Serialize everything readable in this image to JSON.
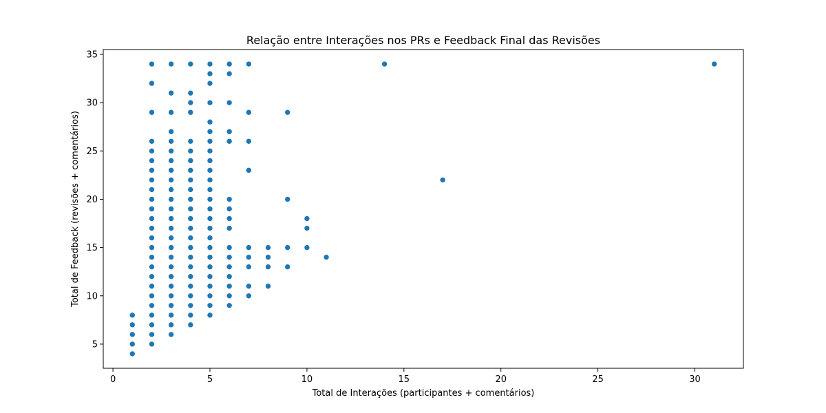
{
  "chart_data": {
    "type": "scatter",
    "title": "Relação entre Interações nos PRs e Feedback Final das Revisões",
    "xlabel": "Total de Interações (participantes + comentários)",
    "ylabel": "Total de Feedback (revisões + comentários)",
    "xlim": [
      -0.5,
      32.5
    ],
    "ylim": [
      2.5,
      35.5
    ],
    "xticks": [
      0,
      5,
      10,
      15,
      20,
      25,
      30
    ],
    "yticks": [
      5,
      10,
      15,
      20,
      25,
      30,
      35
    ],
    "grid": false,
    "color": "#1f77b4",
    "points": [
      [
        1,
        4
      ],
      [
        1,
        5
      ],
      [
        1,
        6
      ],
      [
        1,
        7
      ],
      [
        1,
        8
      ],
      [
        2,
        5
      ],
      [
        2,
        6
      ],
      [
        2,
        7
      ],
      [
        2,
        8
      ],
      [
        2,
        9
      ],
      [
        2,
        10
      ],
      [
        2,
        11
      ],
      [
        2,
        12
      ],
      [
        2,
        13
      ],
      [
        2,
        14
      ],
      [
        2,
        15
      ],
      [
        2,
        16
      ],
      [
        2,
        17
      ],
      [
        2,
        18
      ],
      [
        2,
        19
      ],
      [
        2,
        20
      ],
      [
        2,
        21
      ],
      [
        2,
        22
      ],
      [
        2,
        23
      ],
      [
        2,
        24
      ],
      [
        2,
        25
      ],
      [
        2,
        26
      ],
      [
        2,
        29
      ],
      [
        2,
        32
      ],
      [
        2,
        34
      ],
      [
        3,
        6
      ],
      [
        3,
        7
      ],
      [
        3,
        8
      ],
      [
        3,
        9
      ],
      [
        3,
        10
      ],
      [
        3,
        11
      ],
      [
        3,
        12
      ],
      [
        3,
        13
      ],
      [
        3,
        14
      ],
      [
        3,
        15
      ],
      [
        3,
        16
      ],
      [
        3,
        17
      ],
      [
        3,
        18
      ],
      [
        3,
        19
      ],
      [
        3,
        20
      ],
      [
        3,
        21
      ],
      [
        3,
        22
      ],
      [
        3,
        23
      ],
      [
        3,
        24
      ],
      [
        3,
        25
      ],
      [
        3,
        26
      ],
      [
        3,
        27
      ],
      [
        3,
        29
      ],
      [
        3,
        31
      ],
      [
        3,
        34
      ],
      [
        4,
        7
      ],
      [
        4,
        8
      ],
      [
        4,
        9
      ],
      [
        4,
        10
      ],
      [
        4,
        11
      ],
      [
        4,
        12
      ],
      [
        4,
        13
      ],
      [
        4,
        14
      ],
      [
        4,
        15
      ],
      [
        4,
        16
      ],
      [
        4,
        17
      ],
      [
        4,
        18
      ],
      [
        4,
        19
      ],
      [
        4,
        20
      ],
      [
        4,
        21
      ],
      [
        4,
        22
      ],
      [
        4,
        23
      ],
      [
        4,
        24
      ],
      [
        4,
        25
      ],
      [
        4,
        26
      ],
      [
        4,
        29
      ],
      [
        4,
        30
      ],
      [
        4,
        31
      ],
      [
        4,
        34
      ],
      [
        5,
        8
      ],
      [
        5,
        9
      ],
      [
        5,
        10
      ],
      [
        5,
        11
      ],
      [
        5,
        12
      ],
      [
        5,
        13
      ],
      [
        5,
        14
      ],
      [
        5,
        15
      ],
      [
        5,
        16
      ],
      [
        5,
        17
      ],
      [
        5,
        18
      ],
      [
        5,
        19
      ],
      [
        5,
        20
      ],
      [
        5,
        21
      ],
      [
        5,
        22
      ],
      [
        5,
        23
      ],
      [
        5,
        24
      ],
      [
        5,
        25
      ],
      [
        5,
        26
      ],
      [
        5,
        27
      ],
      [
        5,
        28
      ],
      [
        5,
        30
      ],
      [
        5,
        32
      ],
      [
        5,
        33
      ],
      [
        5,
        34
      ],
      [
        6,
        9
      ],
      [
        6,
        10
      ],
      [
        6,
        11
      ],
      [
        6,
        12
      ],
      [
        6,
        13
      ],
      [
        6,
        14
      ],
      [
        6,
        15
      ],
      [
        6,
        17
      ],
      [
        6,
        18
      ],
      [
        6,
        19
      ],
      [
        6,
        20
      ],
      [
        6,
        26
      ],
      [
        6,
        27
      ],
      [
        6,
        30
      ],
      [
        6,
        33
      ],
      [
        6,
        34
      ],
      [
        7,
        10
      ],
      [
        7,
        11
      ],
      [
        7,
        13
      ],
      [
        7,
        14
      ],
      [
        7,
        15
      ],
      [
        7,
        23
      ],
      [
        7,
        26
      ],
      [
        7,
        29
      ],
      [
        7,
        34
      ],
      [
        8,
        11
      ],
      [
        8,
        13
      ],
      [
        8,
        14
      ],
      [
        8,
        15
      ],
      [
        9,
        13
      ],
      [
        9,
        15
      ],
      [
        9,
        20
      ],
      [
        9,
        29
      ],
      [
        10,
        15
      ],
      [
        10,
        17
      ],
      [
        10,
        18
      ],
      [
        11,
        14
      ],
      [
        14,
        34
      ],
      [
        17,
        22
      ],
      [
        31,
        34
      ]
    ]
  }
}
